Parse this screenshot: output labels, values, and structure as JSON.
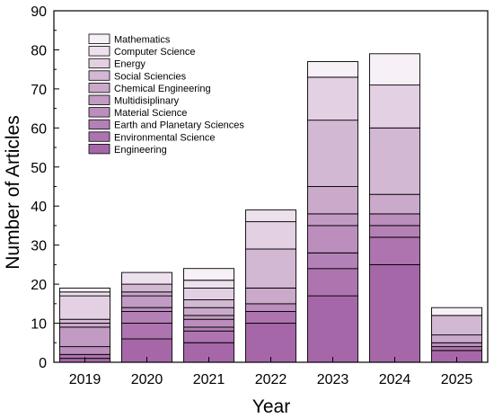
{
  "chart_data": {
    "type": "bar",
    "stacked": true,
    "title": "",
    "xlabel": "Year",
    "ylabel": "Number of Articles",
    "ylim": [
      0,
      90
    ],
    "yticks": [
      "0",
      "10",
      "20",
      "30",
      "40",
      "50",
      "60",
      "70",
      "80",
      "90"
    ],
    "grid": false,
    "legend_position": "top-left",
    "categories": [
      "2019",
      "2020",
      "2021",
      "2022",
      "2023",
      "2024",
      "2025"
    ],
    "series": [
      {
        "name": "Engineering",
        "color": "#A667A9",
        "values": [
          1,
          6,
          5,
          10,
          17,
          25,
          3
        ]
      },
      {
        "name": "Environmental Science",
        "color": "#AD74AF",
        "values": [
          1,
          4,
          3,
          3,
          7,
          7,
          1
        ]
      },
      {
        "name": "Earth and Planetary Sciences",
        "color": "#B481B6",
        "values": [
          0,
          3,
          1,
          0,
          4,
          3,
          0
        ]
      },
      {
        "name": "Material Science",
        "color": "#BB8EBD",
        "values": [
          2,
          1,
          2,
          2,
          7,
          3,
          1
        ]
      },
      {
        "name": "Multidisiplinary",
        "color": "#C29BC4",
        "values": [
          5,
          3,
          1,
          0,
          3,
          0,
          0
        ]
      },
      {
        "name": "Chemical Engineering",
        "color": "#CAA9CB",
        "values": [
          1,
          1,
          2,
          4,
          7,
          5,
          2
        ]
      },
      {
        "name": "Social  Sciencies",
        "color": "#D3B8D3",
        "values": [
          1,
          2,
          2,
          10,
          17,
          17,
          5
        ]
      },
      {
        "name": "Energy",
        "color": "#E3D0E3",
        "values": [
          6,
          0,
          3,
          7,
          11,
          11,
          0
        ]
      },
      {
        "name": "Computer Science",
        "color": "#EDE1ED",
        "values": [
          1,
          3,
          2,
          3,
          0,
          0,
          0
        ]
      },
      {
        "name": "Mathematics",
        "color": "#F7F0F7",
        "values": [
          1,
          0,
          3,
          0,
          4,
          8,
          2
        ]
      }
    ]
  }
}
